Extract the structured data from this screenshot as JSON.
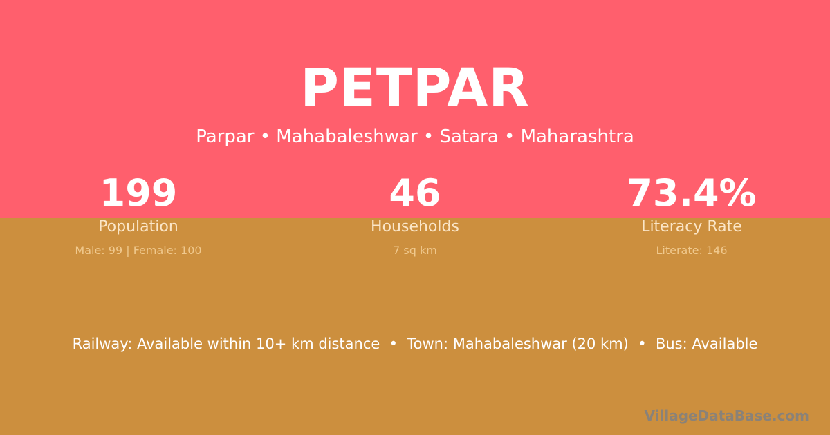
{
  "village": {
    "name": "PETPAR",
    "location": "Parpar • Mahabaleshwar • Satara • Maharashtra"
  },
  "stats": [
    {
      "value": "199",
      "label": "Population",
      "detail": "Male: 99 | Female: 100"
    },
    {
      "value": "46",
      "label": "Households",
      "detail": "7 sq km"
    },
    {
      "value": "73.4%",
      "label": "Literacy Rate",
      "detail": "Literate: 146"
    }
  ],
  "connectivity": "Railway: Available within 10+ km distance  •  Town: Mahabaleshwar (20 km)  •  Bus: Available",
  "watermark": "VillageDataBase.com",
  "colors": {
    "top": "#FF5F6D",
    "bottom": "#CC8F3E"
  }
}
